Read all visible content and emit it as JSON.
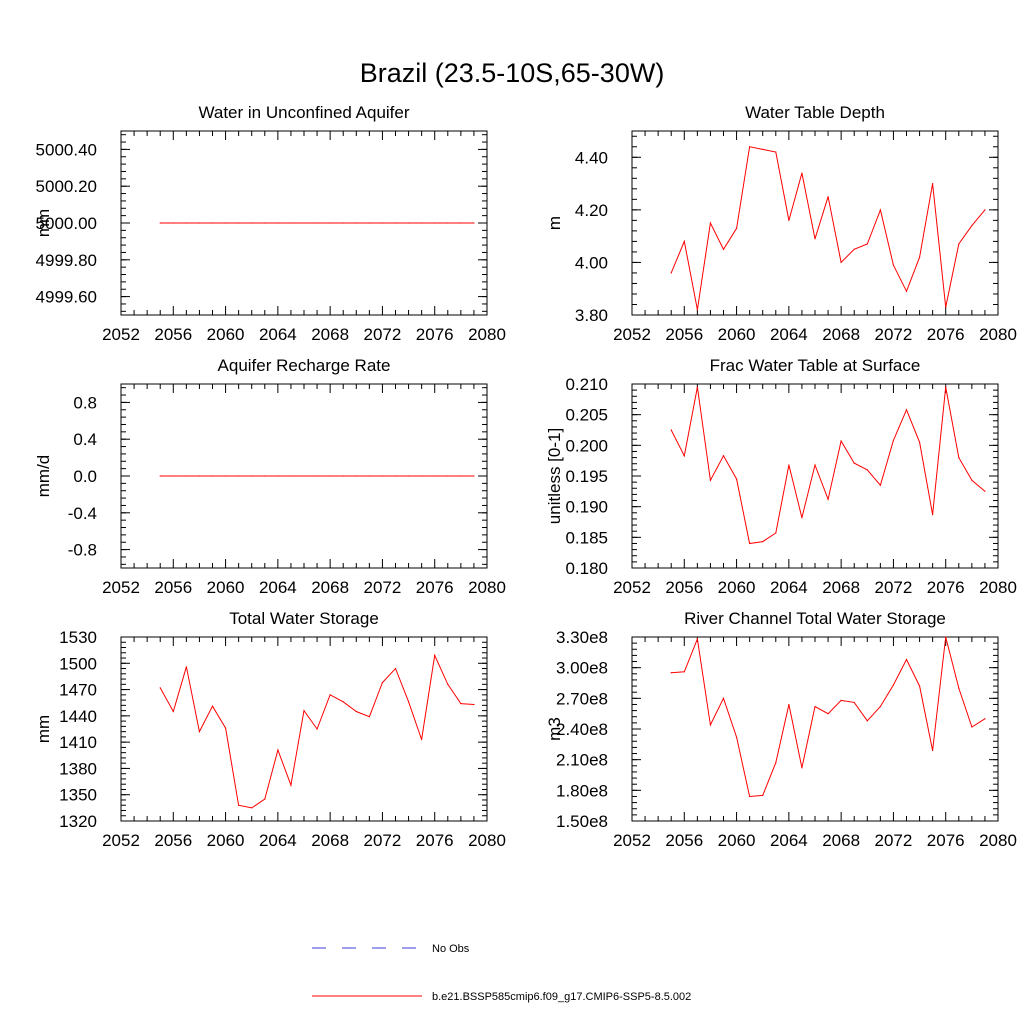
{
  "figure_title": "Brazil (23.5-10S,65-30W)",
  "colors": {
    "model": "#ff0000",
    "obs": "#3d3dd6",
    "axis": "#000000"
  },
  "legend": {
    "obs_label": "No Obs",
    "model_label": "b.e21.BSSP585cmip6.f09_g17.CMIP6-SSP5-8.5.002"
  },
  "chart_data": [
    {
      "type": "line",
      "title": "Water in Unconfined Aquifer",
      "ylabel": "mm",
      "xlim": [
        2052,
        2080
      ],
      "ylim": [
        4999.5,
        5000.5
      ],
      "x_ticks": [
        2052,
        2056,
        2060,
        2064,
        2068,
        2072,
        2076,
        2080
      ],
      "y_ticks": [
        4999.6,
        4999.8,
        5000.0,
        5000.2,
        5000.4
      ],
      "y_tick_labels": [
        "4999.60",
        "4999.80",
        "5000.00",
        "5000.20",
        "5000.40"
      ],
      "x": [
        2055,
        2056,
        2057,
        2058,
        2059,
        2060,
        2061,
        2062,
        2063,
        2064,
        2065,
        2066,
        2067,
        2068,
        2069,
        2070,
        2071,
        2072,
        2073,
        2074,
        2075,
        2076,
        2077,
        2078,
        2079
      ],
      "series": [
        {
          "name": "b.e21.BSSP585cmip6.f09_g17.CMIP6-SSP5-8.5.002",
          "values": [
            5000,
            5000,
            5000,
            5000,
            5000,
            5000,
            5000,
            5000,
            5000,
            5000,
            5000,
            5000,
            5000,
            5000,
            5000,
            5000,
            5000,
            5000,
            5000,
            5000,
            5000,
            5000,
            5000,
            5000,
            5000
          ]
        }
      ]
    },
    {
      "type": "line",
      "title": "Water Table Depth",
      "ylabel": "m",
      "xlim": [
        2052,
        2080
      ],
      "ylim": [
        3.8,
        4.5
      ],
      "x_ticks": [
        2052,
        2056,
        2060,
        2064,
        2068,
        2072,
        2076,
        2080
      ],
      "y_ticks": [
        3.8,
        4.0,
        4.2,
        4.4
      ],
      "y_tick_labels": [
        "3.80",
        "4.00",
        "4.20",
        "4.40"
      ],
      "x": [
        2055,
        2056,
        2057,
        2058,
        2059,
        2060,
        2061,
        2062,
        2063,
        2064,
        2065,
        2066,
        2067,
        2068,
        2069,
        2070,
        2071,
        2072,
        2073,
        2074,
        2075,
        2076,
        2077,
        2078,
        2079
      ],
      "series": [
        {
          "name": "b.e21.BSSP585cmip6.f09_g17.CMIP6-SSP5-8.5.002",
          "values": [
            3.96,
            4.08,
            3.82,
            4.15,
            4.05,
            4.13,
            4.44,
            4.43,
            4.42,
            4.16,
            4.34,
            4.09,
            4.25,
            4.0,
            4.05,
            4.07,
            4.2,
            3.99,
            3.89,
            4.02,
            4.3,
            3.83,
            4.07,
            4.14,
            4.2
          ]
        }
      ]
    },
    {
      "type": "line",
      "title": "Aquifer Recharge Rate",
      "ylabel": "mm/d",
      "xlim": [
        2052,
        2080
      ],
      "ylim": [
        -1.0,
        1.0
      ],
      "x_ticks": [
        2052,
        2056,
        2060,
        2064,
        2068,
        2072,
        2076,
        2080
      ],
      "y_ticks": [
        -0.8,
        -0.4,
        0.0,
        0.4,
        0.8
      ],
      "y_tick_labels": [
        "-0.8",
        "-0.4",
        "0.0",
        "0.4",
        "0.8"
      ],
      "x": [
        2055,
        2056,
        2057,
        2058,
        2059,
        2060,
        2061,
        2062,
        2063,
        2064,
        2065,
        2066,
        2067,
        2068,
        2069,
        2070,
        2071,
        2072,
        2073,
        2074,
        2075,
        2076,
        2077,
        2078,
        2079
      ],
      "series": [
        {
          "name": "b.e21.BSSP585cmip6.f09_g17.CMIP6-SSP5-8.5.002",
          "values": [
            0,
            0,
            0,
            0,
            0,
            0,
            0,
            0,
            0,
            0,
            0,
            0,
            0,
            0,
            0,
            0,
            0,
            0,
            0,
            0,
            0,
            0,
            0,
            0,
            0
          ]
        }
      ]
    },
    {
      "type": "line",
      "title": "Frac Water Table at Surface",
      "ylabel": "unitless [0-1]",
      "xlim": [
        2052,
        2080
      ],
      "ylim": [
        0.18,
        0.21
      ],
      "x_ticks": [
        2052,
        2056,
        2060,
        2064,
        2068,
        2072,
        2076,
        2080
      ],
      "y_ticks": [
        0.18,
        0.185,
        0.19,
        0.195,
        0.2,
        0.205,
        0.21
      ],
      "y_tick_labels": [
        "0.180",
        "0.185",
        "0.190",
        "0.195",
        "0.200",
        "0.205",
        "0.210"
      ],
      "x": [
        2055,
        2056,
        2057,
        2058,
        2059,
        2060,
        2061,
        2062,
        2063,
        2064,
        2065,
        2066,
        2067,
        2068,
        2069,
        2070,
        2071,
        2072,
        2073,
        2074,
        2075,
        2076,
        2077,
        2078,
        2079
      ],
      "series": [
        {
          "name": "b.e21.BSSP585cmip6.f09_g17.CMIP6-SSP5-8.5.002",
          "values": [
            0.2025,
            0.1983,
            0.2095,
            0.1943,
            0.1983,
            0.1945,
            0.184,
            0.1843,
            0.1857,
            0.1968,
            0.1882,
            0.1968,
            0.1912,
            0.2007,
            0.1971,
            0.196,
            0.1935,
            0.2008,
            0.2058,
            0.2005,
            0.1887,
            0.2095,
            0.198,
            0.1943,
            0.1925
          ]
        }
      ]
    },
    {
      "type": "line",
      "title": "Total Water Storage",
      "ylabel": "mm",
      "xlim": [
        2052,
        2080
      ],
      "ylim": [
        1320,
        1530
      ],
      "x_ticks": [
        2052,
        2056,
        2060,
        2064,
        2068,
        2072,
        2076,
        2080
      ],
      "y_ticks": [
        1320,
        1350,
        1380,
        1410,
        1440,
        1470,
        1500,
        1530
      ],
      "y_tick_labels": [
        "1320",
        "1350",
        "1380",
        "1410",
        "1440",
        "1470",
        "1500",
        "1530"
      ],
      "x": [
        2055,
        2056,
        2057,
        2058,
        2059,
        2060,
        2061,
        2062,
        2063,
        2064,
        2065,
        2066,
        2067,
        2068,
        2069,
        2070,
        2071,
        2072,
        2073,
        2074,
        2075,
        2076,
        2077,
        2078,
        2079
      ],
      "series": [
        {
          "name": "b.e21.BSSP585cmip6.f09_g17.CMIP6-SSP5-8.5.002",
          "values": [
            1472,
            1445,
            1496,
            1422,
            1451,
            1426,
            1338,
            1335,
            1345,
            1401,
            1361,
            1446,
            1425,
            1464,
            1456,
            1445,
            1439,
            1478,
            1494,
            1456,
            1413,
            1509,
            1476,
            1454,
            1453
          ]
        }
      ]
    },
    {
      "type": "line",
      "title": "River Channel Total Water Storage",
      "ylabel": "m3",
      "xlim": [
        2052,
        2080
      ],
      "ylim": [
        150000000,
        330000000
      ],
      "x_ticks": [
        2052,
        2056,
        2060,
        2064,
        2068,
        2072,
        2076,
        2080
      ],
      "y_ticks": [
        150000000,
        180000000,
        210000000,
        240000000,
        270000000,
        300000000,
        330000000
      ],
      "y_tick_labels": [
        "1.50e8",
        "1.80e8",
        "2.10e8",
        "2.40e8",
        "2.70e8",
        "3.00e8",
        "3.30e8"
      ],
      "x": [
        2055,
        2056,
        2057,
        2058,
        2059,
        2060,
        2061,
        2062,
        2063,
        2064,
        2065,
        2066,
        2067,
        2068,
        2069,
        2070,
        2071,
        2072,
        2073,
        2074,
        2075,
        2076,
        2077,
        2078,
        2079
      ],
      "series": [
        {
          "name": "b.e21.BSSP585cmip6.f09_g17.CMIP6-SSP5-8.5.002",
          "values": [
            295000000,
            296000000,
            328000000,
            244000000,
            270000000,
            232000000,
            174000000,
            175000000,
            207000000,
            264000000,
            202000000,
            262000000,
            255000000,
            268000000,
            266000000,
            248000000,
            262000000,
            283000000,
            308000000,
            282000000,
            219000000,
            330000000,
            280000000,
            242000000,
            250000000
          ]
        }
      ]
    }
  ]
}
